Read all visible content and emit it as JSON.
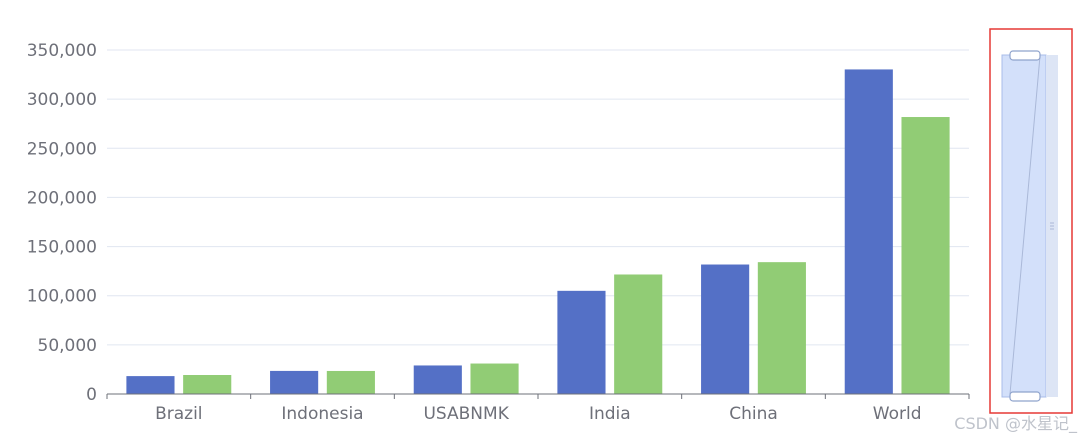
{
  "chart_data": {
    "type": "bar",
    "categories": [
      "Brazil",
      "Indonesia",
      "USABNMK",
      "India",
      "China",
      "World"
    ],
    "series": [
      {
        "values": [
          18203,
          23489,
          29034,
          104970,
          131744,
          330230
        ]
      },
      {
        "values": [
          19325,
          23438,
          31000,
          121594,
          134141,
          281807
        ]
      }
    ],
    "ylim": [
      0,
      350000
    ],
    "yticks": [
      "0",
      "50,000",
      "100,000",
      "150,000",
      "200,000",
      "250,000",
      "300,000",
      "350,000"
    ],
    "grid": true,
    "colors": [
      "#5470c6",
      "#91cc75"
    ]
  },
  "dataZoom": {
    "orientation": "vertical",
    "start_percent": 0,
    "end_percent": 100,
    "highlight_color": "#e53935"
  },
  "watermark": "CSDN @水星记_"
}
